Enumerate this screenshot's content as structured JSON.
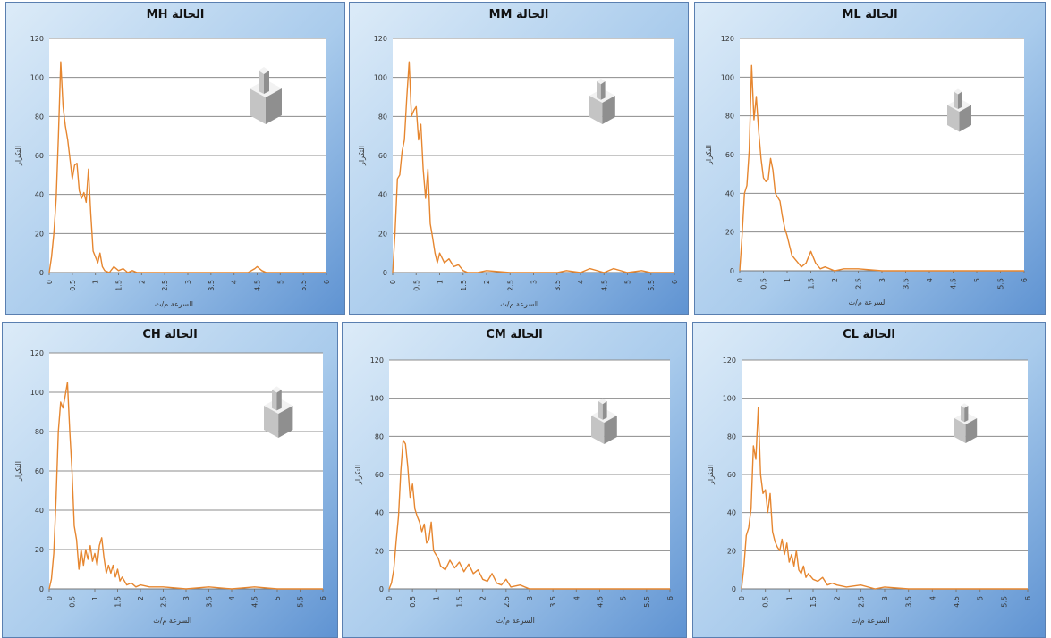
{
  "colors": {
    "line": "#e6862f",
    "grid": "#8c8c8c",
    "plot_bg": "#ffffff",
    "panel_dark": "#5f93d2",
    "panel_light": "#dcebf8",
    "block_top": "#f2f2f2",
    "block_side": "#8f8f8f",
    "block_front": "#c4c4c4"
  },
  "chart_data": [
    {
      "id": "MH",
      "type": "line",
      "title": "الحالة  MH",
      "xlabel": "السرعة م/ث",
      "ylabel": "التكرار",
      "xlim": [
        0,
        6
      ],
      "ylim": [
        0,
        120
      ],
      "x_ticks": [
        "0",
        "0.5",
        "1",
        "1.5",
        "2",
        "2.5",
        "3",
        "3.5",
        "4",
        "4.5",
        "5",
        "5.5",
        "6"
      ],
      "y_ticks": [
        "0",
        "20",
        "40",
        "60",
        "80",
        "100",
        "120"
      ],
      "series": [
        {
          "x": [
            0,
            0.05,
            0.1,
            0.15,
            0.2,
            0.25,
            0.3,
            0.35,
            0.4,
            0.45,
            0.5,
            0.55,
            0.6,
            0.65,
            0.7,
            0.75,
            0.8,
            0.85,
            0.9,
            0.95,
            1,
            1.05,
            1.1,
            1.15,
            1.2,
            1.3,
            1.4,
            1.5,
            1.6,
            1.7,
            1.8,
            1.9,
            2,
            2.2,
            2.5,
            3,
            3.5,
            4,
            4.3,
            4.45,
            4.5,
            4.6,
            4.7,
            5,
            5.5,
            6
          ],
          "y": [
            0,
            8,
            20,
            38,
            70,
            108,
            85,
            75,
            68,
            58,
            48,
            55,
            56,
            42,
            38,
            41,
            36,
            53,
            30,
            11,
            8,
            5,
            10,
            3,
            1,
            0,
            3,
            1,
            2,
            0,
            1,
            0,
            0,
            0,
            0,
            0,
            0,
            0,
            0,
            2,
            3,
            1,
            0,
            0,
            0,
            0
          ]
        }
      ]
    },
    {
      "id": "MM",
      "type": "line",
      "title": "الحالة MM",
      "xlabel": "السرعة م/ث",
      "ylabel": "التكرار",
      "xlim": [
        0,
        6
      ],
      "ylim": [
        0,
        120
      ],
      "x_ticks": [
        "0",
        "0.5",
        "1",
        "1.5",
        "2",
        "2.5",
        "3",
        "3.5",
        "4",
        "4.5",
        "5",
        "5.5",
        "6"
      ],
      "y_ticks": [
        "0",
        "20",
        "40",
        "60",
        "80",
        "100",
        "120"
      ],
      "series": [
        {
          "x": [
            0,
            0.05,
            0.1,
            0.15,
            0.2,
            0.25,
            0.3,
            0.35,
            0.4,
            0.45,
            0.5,
            0.55,
            0.6,
            0.65,
            0.7,
            0.75,
            0.8,
            0.85,
            0.9,
            0.95,
            1,
            1.1,
            1.2,
            1.3,
            1.4,
            1.5,
            1.6,
            1.8,
            2,
            2.5,
            3,
            3.5,
            3.7,
            4,
            4.2,
            4.5,
            4.7,
            5,
            5.3,
            5.5,
            6
          ],
          "y": [
            0,
            20,
            48,
            50,
            62,
            68,
            90,
            108,
            80,
            83,
            85,
            68,
            76,
            53,
            38,
            53,
            25,
            18,
            10,
            5,
            10,
            5,
            7,
            3,
            4,
            1,
            0,
            0,
            1,
            0,
            0,
            0,
            1,
            0,
            2,
            0,
            2,
            0,
            1,
            0,
            0
          ]
        }
      ]
    },
    {
      "id": "ML",
      "type": "line",
      "title": "الحالة ML",
      "xlabel": "السرعة م/ث",
      "ylabel": "التكرار",
      "xlim": [
        0,
        6
      ],
      "ylim": [
        0,
        120
      ],
      "x_ticks": [
        "0",
        "0.5",
        "1",
        "1.5",
        "2",
        "2.5",
        "3",
        "3.5",
        "4",
        "4.5",
        "5",
        "5.5",
        "6"
      ],
      "y_ticks": [
        "0",
        "20",
        "40",
        "60",
        "80",
        "100",
        "120"
      ],
      "series": [
        {
          "x": [
            0,
            0.05,
            0.1,
            0.15,
            0.2,
            0.25,
            0.3,
            0.35,
            0.4,
            0.45,
            0.5,
            0.55,
            0.6,
            0.65,
            0.7,
            0.75,
            0.8,
            0.85,
            0.9,
            0.95,
            1,
            1.1,
            1.2,
            1.3,
            1.4,
            1.5,
            1.6,
            1.7,
            1.8,
            2,
            2.2,
            2.5,
            3,
            3.5,
            4,
            4.5,
            5,
            5.5,
            6
          ],
          "y": [
            0,
            18,
            40,
            44,
            62,
            106,
            78,
            90,
            72,
            58,
            48,
            46,
            47,
            58,
            52,
            40,
            38,
            36,
            28,
            22,
            18,
            8,
            5,
            2,
            4,
            10,
            4,
            1,
            2,
            0,
            1,
            1,
            0,
            0,
            0,
            0,
            0,
            0,
            0
          ]
        }
      ]
    },
    {
      "id": "CH",
      "type": "line",
      "title": "الحالة CH",
      "xlabel": "السرعة م/ث",
      "ylabel": "التكرار",
      "xlim": [
        0,
        6
      ],
      "ylim": [
        0,
        120
      ],
      "x_ticks": [
        "0",
        "0.5",
        "1",
        "1.5",
        "2",
        "2.5",
        "3",
        "3.5",
        "4",
        "4.5",
        "5",
        "5.5",
        "6"
      ],
      "y_ticks": [
        "0",
        "20",
        "40",
        "60",
        "80",
        "100",
        "120"
      ],
      "series": [
        {
          "x": [
            0,
            0.05,
            0.1,
            0.15,
            0.2,
            0.25,
            0.3,
            0.35,
            0.4,
            0.45,
            0.5,
            0.55,
            0.6,
            0.65,
            0.7,
            0.75,
            0.8,
            0.85,
            0.9,
            0.95,
            1,
            1.05,
            1.1,
            1.15,
            1.2,
            1.25,
            1.3,
            1.35,
            1.4,
            1.45,
            1.5,
            1.55,
            1.6,
            1.7,
            1.8,
            1.9,
            2,
            2.2,
            2.5,
            3,
            3.5,
            4,
            4.5,
            5,
            5.5,
            6
          ],
          "y": [
            0,
            5,
            18,
            45,
            80,
            95,
            92,
            98,
            105,
            80,
            60,
            32,
            25,
            10,
            20,
            12,
            20,
            15,
            22,
            14,
            18,
            12,
            22,
            26,
            16,
            8,
            12,
            8,
            12,
            6,
            10,
            4,
            6,
            2,
            3,
            1,
            2,
            1,
            1,
            0,
            1,
            0,
            1,
            0,
            0,
            0
          ]
        }
      ]
    },
    {
      "id": "CM",
      "type": "line",
      "title": "الحالة CM",
      "xlabel": "السرعة م/ث",
      "ylabel": "التكرار",
      "xlim": [
        0,
        6
      ],
      "ylim": [
        0,
        120
      ],
      "x_ticks": [
        "0",
        "0.5",
        "1",
        "1.5",
        "2",
        "2.5",
        "3",
        "3.5",
        "4",
        "4.5",
        "5",
        "5.5",
        "6"
      ],
      "y_ticks": [
        "0",
        "20",
        "40",
        "60",
        "80",
        "100",
        "120"
      ],
      "series": [
        {
          "x": [
            0,
            0.05,
            0.1,
            0.15,
            0.2,
            0.25,
            0.3,
            0.35,
            0.4,
            0.45,
            0.5,
            0.55,
            0.6,
            0.65,
            0.7,
            0.75,
            0.8,
            0.85,
            0.9,
            0.95,
            1,
            1.05,
            1.1,
            1.2,
            1.3,
            1.4,
            1.5,
            1.6,
            1.7,
            1.8,
            1.9,
            2,
            2.1,
            2.2,
            2.3,
            2.4,
            2.5,
            2.6,
            2.8,
            3,
            3.5,
            4,
            4.5,
            5,
            5.5,
            6
          ],
          "y": [
            0,
            3,
            10,
            25,
            38,
            62,
            78,
            76,
            64,
            48,
            55,
            42,
            38,
            35,
            30,
            34,
            24,
            26,
            35,
            20,
            18,
            16,
            12,
            10,
            15,
            11,
            14,
            9,
            13,
            8,
            10,
            5,
            4,
            8,
            3,
            2,
            5,
            1,
            2,
            0,
            0,
            0,
            0,
            0,
            0,
            0
          ]
        }
      ]
    },
    {
      "id": "CL",
      "type": "line",
      "title": "الحالة CL",
      "xlabel": "السرعة م/ث",
      "ylabel": "التكرار",
      "xlim": [
        0,
        6
      ],
      "ylim": [
        0,
        120
      ],
      "x_ticks": [
        "0",
        "0.5",
        "1",
        "1.5",
        "2",
        "2.5",
        "3",
        "3.5",
        "4",
        "4.5",
        "5",
        "5.5",
        "6"
      ],
      "y_ticks": [
        "0",
        "20",
        "40",
        "60",
        "80",
        "100",
        "120"
      ],
      "series": [
        {
          "x": [
            0,
            0.05,
            0.1,
            0.15,
            0.2,
            0.25,
            0.3,
            0.35,
            0.4,
            0.45,
            0.5,
            0.55,
            0.6,
            0.65,
            0.7,
            0.75,
            0.8,
            0.85,
            0.9,
            0.95,
            1,
            1.05,
            1.1,
            1.15,
            1.2,
            1.25,
            1.3,
            1.35,
            1.4,
            1.5,
            1.6,
            1.7,
            1.8,
            1.9,
            2,
            2.2,
            2.5,
            2.8,
            3,
            3.5,
            4,
            4.5,
            5,
            5.5,
            6
          ],
          "y": [
            0,
            12,
            28,
            32,
            42,
            75,
            68,
            95,
            60,
            50,
            52,
            40,
            50,
            30,
            25,
            22,
            20,
            26,
            18,
            24,
            14,
            18,
            12,
            20,
            10,
            8,
            12,
            6,
            8,
            5,
            4,
            6,
            2,
            3,
            2,
            1,
            2,
            0,
            1,
            0,
            0,
            0,
            0,
            0,
            0
          ]
        }
      ]
    }
  ]
}
